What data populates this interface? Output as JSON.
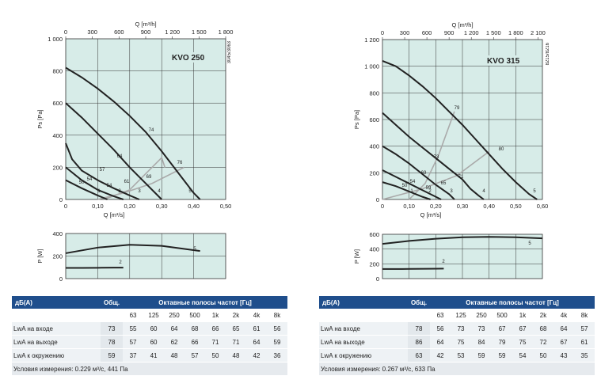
{
  "colors": {
    "plot_bg": "#d7ece8",
    "curve": "#222222",
    "sys_line": "#aaaaaa",
    "header_bg": "#1f4e8c"
  },
  "charts": [
    {
      "model": "KVO 250",
      "code": "3045/3063",
      "q_label": "Q [m³/h]",
      "ps_label": "Ps [Pa]",
      "qs_label": "Q [m³/s]",
      "p_label": "P [W]",
      "top_ticks": [
        "0",
        "300",
        "600",
        "900",
        "1 200",
        "1 500",
        "1 800"
      ],
      "ps_ticks": [
        "0",
        "200",
        "400",
        "600",
        "800",
        "1 000"
      ],
      "qs_ticks": [
        "0",
        "0,10",
        "0,20",
        "0,30",
        "0,40",
        "0,50"
      ],
      "p_ticks": [
        "0",
        "200",
        "400"
      ],
      "speed_labels": [
        "1",
        "2",
        "3",
        "4",
        "5"
      ],
      "iso_labels": [
        "74",
        "64",
        "57",
        "54",
        "50",
        "69",
        "61",
        "54",
        "76"
      ],
      "power_labels": [
        "5",
        "2"
      ],
      "table": {
        "h_db": "дБ(А)",
        "h_total": "Общ.",
        "h_bands": "Октавные полосы частот [Гц]",
        "bands": [
          "63",
          "125",
          "250",
          "500",
          "1k",
          "2k",
          "4k",
          "8k"
        ],
        "rows": [
          {
            "label": "LwA на входе",
            "total": "73",
            "vals": [
              "55",
              "60",
              "64",
              "68",
              "66",
              "65",
              "61",
              "56"
            ]
          },
          {
            "label": "LwA на выходе",
            "total": "78",
            "vals": [
              "57",
              "60",
              "62",
              "66",
              "71",
              "71",
              "64",
              "59"
            ]
          },
          {
            "label": "LwA к окружению",
            "total": "59",
            "vals": [
              "37",
              "41",
              "48",
              "57",
              "50",
              "48",
              "42",
              "36"
            ]
          }
        ],
        "note": "Условия измерения: 0.229 м³/с, 441 Па"
      },
      "chart_data": {
        "type": "line",
        "title": "KVO 250",
        "xlabel": "Q [m³/s]",
        "ylabel": "Ps [Pa]",
        "xlim": [
          0,
          0.5
        ],
        "ylim": [
          0,
          1000
        ],
        "series": [
          {
            "name": "5",
            "x": [
              0,
              0.05,
              0.1,
              0.15,
              0.2,
              0.25,
              0.3,
              0.35,
              0.4,
              0.42
            ],
            "y": [
              820,
              760,
              690,
              610,
              520,
              420,
              300,
              170,
              40,
              0
            ]
          },
          {
            "name": "4",
            "x": [
              0,
              0.05,
              0.1,
              0.15,
              0.2,
              0.25,
              0.28,
              0.3
            ],
            "y": [
              600,
              510,
              410,
              310,
              200,
              100,
              40,
              0
            ]
          },
          {
            "name": "3",
            "x": [
              0,
              0.02,
              0.05,
              0.1,
              0.15,
              0.2,
              0.23
            ],
            "y": [
              350,
              250,
              180,
              120,
              70,
              25,
              0
            ]
          },
          {
            "name": "2",
            "x": [
              0,
              0.05,
              0.1,
              0.15,
              0.18
            ],
            "y": [
              200,
              120,
              60,
              20,
              0
            ]
          },
          {
            "name": "1",
            "x": [
              0,
              0.05,
              0.1,
              0.13
            ],
            "y": [
              120,
              70,
              25,
              0
            ]
          }
        ],
        "power": {
          "ylim": [
            0,
            400
          ],
          "series": [
            {
              "name": "5",
              "x": [
                0,
                0.1,
                0.2,
                0.3,
                0.42
              ],
              "y": [
                225,
                275,
                300,
                290,
                245
              ]
            },
            {
              "name": "2",
              "x": [
                0,
                0.05,
                0.1,
                0.15,
                0.18
              ],
              "y": [
                95,
                95,
                96,
                97,
                97
              ]
            }
          ]
        }
      }
    },
    {
      "model": "KVO 315",
      "code": "8215/8216",
      "q_label": "Q [m³/h]",
      "ps_label": "Ps [Pa]",
      "qs_label": "Q [m³/s]",
      "p_label": "P [W]",
      "top_ticks": [
        "0",
        "300",
        "600",
        "900",
        "1 200",
        "1 500",
        "1 800",
        "2 100"
      ],
      "ps_ticks": [
        "0",
        "200",
        "400",
        "600",
        "800",
        "1 000",
        "1 200"
      ],
      "qs_ticks": [
        "0",
        "0,10",
        "0,20",
        "0,30",
        "0,40",
        "0,50",
        "0,60"
      ],
      "p_ticks": [
        "0",
        "200",
        "400",
        "600"
      ],
      "speed_labels": [
        "1",
        "2",
        "3",
        "4",
        "5"
      ],
      "iso_labels": [
        "79",
        "73",
        "69",
        "54",
        "50",
        "71",
        "65",
        "59",
        "80"
      ],
      "power_labels": [
        "5",
        "2"
      ],
      "table": {
        "h_db": "дБ(А)",
        "h_total": "Общ.",
        "h_bands": "Октавные полосы частот [Гц]",
        "bands": [
          "63",
          "125",
          "250",
          "500",
          "1k",
          "2k",
          "4k",
          "8k"
        ],
        "rows": [
          {
            "label": "LwA на входе",
            "total": "78",
            "vals": [
              "56",
              "73",
              "73",
              "67",
              "67",
              "68",
              "64",
              "57"
            ]
          },
          {
            "label": "LwA на выходе",
            "total": "86",
            "vals": [
              "64",
              "75",
              "84",
              "79",
              "75",
              "72",
              "67",
              "61"
            ]
          },
          {
            "label": "LwA к окружению",
            "total": "63",
            "vals": [
              "42",
              "53",
              "59",
              "59",
              "54",
              "50",
              "43",
              "35"
            ]
          }
        ],
        "note": "Условия измерения: 0.267 м³/с, 633 Па"
      },
      "chart_data": {
        "type": "line",
        "title": "KVO 315",
        "xlabel": "Q [m³/s]",
        "ylabel": "Ps [Pa]",
        "xlim": [
          0,
          0.6
        ],
        "ylim": [
          0,
          1200
        ],
        "series": [
          {
            "name": "5",
            "x": [
              0,
              0.05,
              0.1,
              0.15,
              0.2,
              0.25,
              0.3,
              0.35,
              0.4,
              0.45,
              0.5,
              0.55,
              0.58
            ],
            "y": [
              1040,
              1000,
              930,
              850,
              760,
              660,
              560,
              450,
              340,
              230,
              130,
              40,
              0
            ]
          },
          {
            "name": "4",
            "x": [
              0,
              0.05,
              0.1,
              0.15,
              0.2,
              0.25,
              0.3,
              0.33,
              0.36,
              0.38
            ],
            "y": [
              650,
              560,
              470,
              390,
              310,
              230,
              150,
              80,
              30,
              0
            ]
          },
          {
            "name": "3",
            "x": [
              0,
              0.05,
              0.1,
              0.15,
              0.2,
              0.25,
              0.27
            ],
            "y": [
              400,
              340,
              270,
              190,
              110,
              40,
              0
            ]
          },
          {
            "name": "2",
            "x": [
              0,
              0.05,
              0.1,
              0.15,
              0.2,
              0.22
            ],
            "y": [
              220,
              170,
              120,
              70,
              20,
              0
            ]
          },
          {
            "name": "1",
            "x": [
              0,
              0.05,
              0.1,
              0.15,
              0.18
            ],
            "y": [
              130,
              100,
              60,
              20,
              0
            ]
          }
        ],
        "power": {
          "ylim": [
            0,
            600
          ],
          "series": [
            {
              "name": "5",
              "x": [
                0,
                0.1,
                0.2,
                0.3,
                0.4,
                0.5,
                0.6
              ],
              "y": [
                470,
                510,
                540,
                560,
                565,
                560,
                545
              ]
            },
            {
              "name": "2",
              "x": [
                0,
                0.05,
                0.1,
                0.15,
                0.2,
                0.23
              ],
              "y": [
                130,
                130,
                131,
                133,
                134,
                135
              ]
            }
          ]
        }
      }
    }
  ]
}
